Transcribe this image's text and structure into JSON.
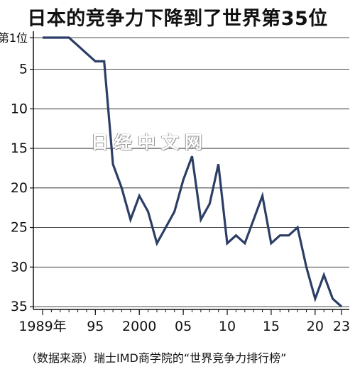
{
  "title": "日本的竞争力下降到了世界第35位",
  "source": "（数据来源）瑞士IMD商学院的“世界竞争力排行榜”",
  "watermark": "日经中文网",
  "colors": {
    "line": "#2c3e66",
    "axis": "#111111",
    "grid": "#111111"
  },
  "chart_data": {
    "type": "line",
    "title": "日本的竞争力下降到了世界第35位",
    "xlabel": "",
    "ylabel": "",
    "y_inverted": true,
    "xlim": [
      1989,
      2023
    ],
    "ylim": [
      1,
      35
    ],
    "x_ticks": [
      {
        "value": 1989,
        "label": "1989年"
      },
      {
        "value": 1995,
        "label": "95"
      },
      {
        "value": 2000,
        "label": "2000"
      },
      {
        "value": 2005,
        "label": "05"
      },
      {
        "value": 2010,
        "label": "10"
      },
      {
        "value": 2015,
        "label": "15"
      },
      {
        "value": 2020,
        "label": "20"
      },
      {
        "value": 2023,
        "label": "23"
      }
    ],
    "y_ticks": [
      {
        "value": 1,
        "label": "第1位"
      },
      {
        "value": 5,
        "label": "5"
      },
      {
        "value": 10,
        "label": "10"
      },
      {
        "value": 15,
        "label": "15"
      },
      {
        "value": 20,
        "label": "20"
      },
      {
        "value": 25,
        "label": "25"
      },
      {
        "value": 30,
        "label": "30"
      },
      {
        "value": 35,
        "label": "35"
      }
    ],
    "grid": "horizontal",
    "series": [
      {
        "x": [
          1989,
          1990,
          1991,
          1992,
          1993,
          1994,
          1995,
          1996,
          1997,
          1998,
          1999,
          2000,
          2001,
          2002,
          2003,
          2004,
          2005,
          2006,
          2007,
          2008,
          2009,
          2010,
          2011,
          2012,
          2013,
          2014,
          2015,
          2016,
          2017,
          2018,
          2019,
          2020,
          2021,
          2022,
          2023
        ],
        "values": [
          1,
          1,
          1,
          1,
          2,
          3,
          4,
          4,
          17,
          20,
          24,
          21,
          23,
          27,
          25,
          23,
          19,
          16,
          24,
          22,
          17,
          27,
          26,
          27,
          24,
          21,
          27,
          26,
          26,
          25,
          30,
          34,
          31,
          34,
          35
        ]
      }
    ]
  }
}
